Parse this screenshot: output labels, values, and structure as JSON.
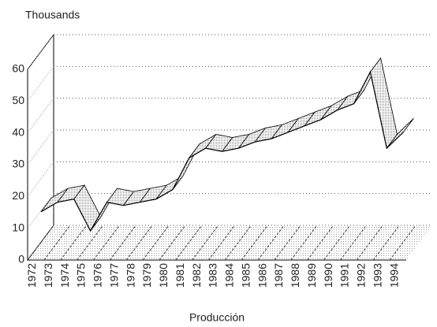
{
  "chart_data": {
    "type": "line3d",
    "y_axis_label": "Thousands",
    "x_axis_label": "Producción",
    "categories": [
      "1972",
      "1973",
      "1974",
      "1975",
      "1976",
      "1977",
      "1978",
      "1979",
      "1980",
      "1981",
      "1982",
      "1983",
      "1984",
      "1985",
      "1986",
      "1987",
      "1988",
      "1989",
      "1990",
      "1991",
      "1992",
      "1993",
      "1994"
    ],
    "values": [
      13,
      16,
      17,
      7,
      16,
      15,
      16,
      17,
      20,
      30,
      33,
      32,
      33,
      35,
      36,
      38,
      40,
      42,
      45,
      47,
      57,
      33,
      38
    ],
    "color": "#000000",
    "ylim": [
      0,
      60
    ],
    "yticks": [
      0,
      10,
      20,
      30,
      40,
      50,
      60
    ],
    "grid": true
  }
}
